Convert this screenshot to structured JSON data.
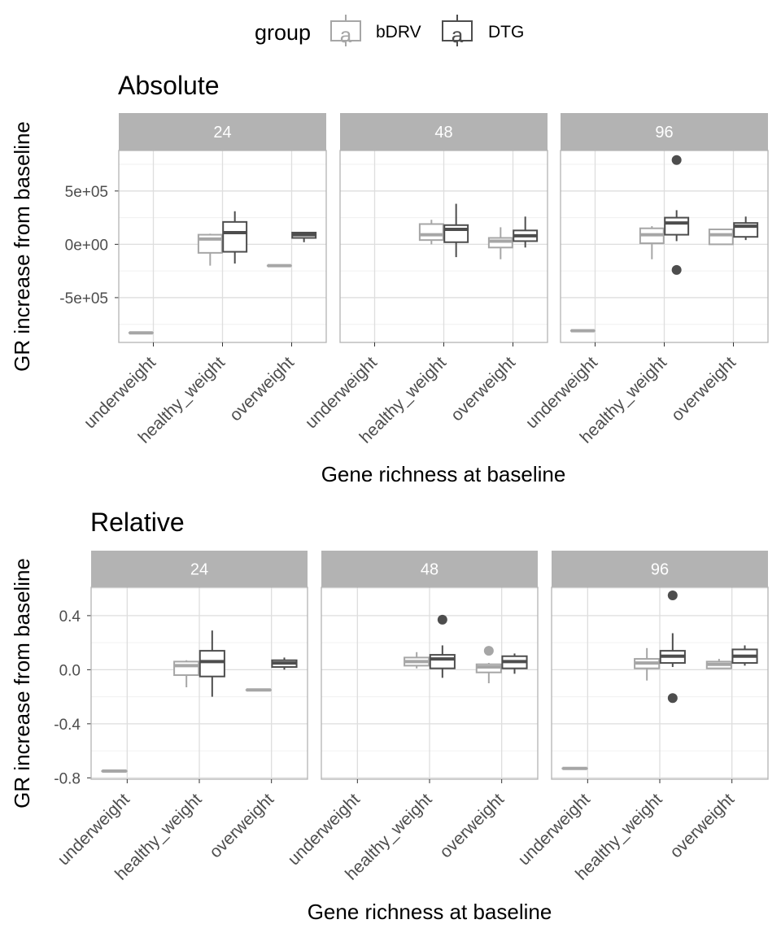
{
  "legend": {
    "title": "group",
    "glyph": "a",
    "position": "top",
    "entries": [
      {
        "label": "bDRV",
        "color": "#a6a6a6"
      },
      {
        "label": "DTG",
        "color": "#4d4d4d"
      }
    ]
  },
  "chart_data": [
    {
      "type": "boxplot",
      "title": "Absolute",
      "xlabel": "Gene richness at baseline",
      "ylabel": "GR increase from baseline",
      "categories": [
        "underweight",
        "healthy_weight",
        "overweight"
      ],
      "y_ticks": [
        -500000,
        0,
        500000
      ],
      "y_tick_labels": [
        "-5e+05",
        "0e+00",
        "5e+05"
      ],
      "ylim": [
        -920000,
        880000
      ],
      "grid": true,
      "facets": [
        {
          "label": "24",
          "boxes": [
            {
              "category": "underweight",
              "group": "bDRV",
              "min": -830000,
              "q1": -830000,
              "median": -830000,
              "q3": -830000,
              "max": -830000,
              "outliers": []
            },
            {
              "category": "healthy_weight",
              "group": "bDRV",
              "min": -200000,
              "q1": -80000,
              "median": 50000,
              "q3": 90000,
              "max": 100000,
              "outliers": []
            },
            {
              "category": "healthy_weight",
              "group": "DTG",
              "min": -180000,
              "q1": -70000,
              "median": 110000,
              "q3": 210000,
              "max": 310000,
              "outliers": []
            },
            {
              "category": "overweight",
              "group": "bDRV",
              "min": -200000,
              "q1": -200000,
              "median": -200000,
              "q3": -200000,
              "max": -200000,
              "outliers": []
            },
            {
              "category": "overweight",
              "group": "DTG",
              "min": 20000,
              "q1": 60000,
              "median": 90000,
              "q3": 110000,
              "max": 110000,
              "outliers": []
            }
          ]
        },
        {
          "label": "48",
          "boxes": [
            {
              "category": "healthy_weight",
              "group": "bDRV",
              "min": 0,
              "q1": 40000,
              "median": 90000,
              "q3": 190000,
              "max": 230000,
              "outliers": []
            },
            {
              "category": "healthy_weight",
              "group": "DTG",
              "min": -120000,
              "q1": 20000,
              "median": 140000,
              "q3": 180000,
              "max": 380000,
              "outliers": []
            },
            {
              "category": "overweight",
              "group": "bDRV",
              "min": -140000,
              "q1": -30000,
              "median": 30000,
              "q3": 60000,
              "max": 160000,
              "outliers": []
            },
            {
              "category": "overweight",
              "group": "DTG",
              "min": -30000,
              "q1": 30000,
              "median": 80000,
              "q3": 130000,
              "max": 260000,
              "outliers": []
            }
          ]
        },
        {
          "label": "96",
          "boxes": [
            {
              "category": "underweight",
              "group": "bDRV",
              "min": -810000,
              "q1": -810000,
              "median": -810000,
              "q3": -810000,
              "max": -810000,
              "outliers": []
            },
            {
              "category": "healthy_weight",
              "group": "bDRV",
              "min": -140000,
              "q1": 10000,
              "median": 90000,
              "q3": 150000,
              "max": 170000,
              "outliers": []
            },
            {
              "category": "healthy_weight",
              "group": "DTG",
              "min": 30000,
              "q1": 90000,
              "median": 200000,
              "q3": 250000,
              "max": 320000,
              "outliers": [
                790000,
                -240000
              ]
            },
            {
              "category": "overweight",
              "group": "bDRV",
              "min": 0,
              "q1": 0,
              "median": 90000,
              "q3": 140000,
              "max": 140000,
              "outliers": []
            },
            {
              "category": "overweight",
              "group": "DTG",
              "min": 40000,
              "q1": 70000,
              "median": 170000,
              "q3": 200000,
              "max": 260000,
              "outliers": []
            }
          ]
        }
      ]
    },
    {
      "type": "boxplot",
      "title": "Relative",
      "xlabel": "Gene richness at baseline",
      "ylabel": "GR increase from baseline",
      "categories": [
        "underweight",
        "healthy_weight",
        "overweight"
      ],
      "y_ticks": [
        -0.8,
        -0.4,
        0.0,
        0.4
      ],
      "y_tick_labels": [
        "-0.8",
        "-0.4",
        "0.0",
        "0.4"
      ],
      "ylim": [
        -0.81,
        0.61
      ],
      "grid": true,
      "facets": [
        {
          "label": "24",
          "boxes": [
            {
              "category": "underweight",
              "group": "bDRV",
              "min": -0.75,
              "q1": -0.75,
              "median": -0.75,
              "q3": -0.75,
              "max": -0.75,
              "outliers": []
            },
            {
              "category": "healthy_weight",
              "group": "bDRV",
              "min": -0.13,
              "q1": -0.04,
              "median": 0.03,
              "q3": 0.06,
              "max": 0.07,
              "outliers": []
            },
            {
              "category": "healthy_weight",
              "group": "DTG",
              "min": -0.2,
              "q1": -0.05,
              "median": 0.06,
              "q3": 0.14,
              "max": 0.29,
              "outliers": []
            },
            {
              "category": "overweight",
              "group": "bDRV",
              "min": -0.15,
              "q1": -0.15,
              "median": -0.15,
              "q3": -0.15,
              "max": -0.15,
              "outliers": []
            },
            {
              "category": "overweight",
              "group": "DTG",
              "min": 0.0,
              "q1": 0.02,
              "median": 0.05,
              "q3": 0.07,
              "max": 0.09,
              "outliers": []
            }
          ]
        },
        {
          "label": "48",
          "boxes": [
            {
              "category": "healthy_weight",
              "group": "bDRV",
              "min": 0.01,
              "q1": 0.03,
              "median": 0.06,
              "q3": 0.09,
              "max": 0.13,
              "outliers": []
            },
            {
              "category": "healthy_weight",
              "group": "DTG",
              "min": -0.06,
              "q1": 0.01,
              "median": 0.08,
              "q3": 0.11,
              "max": 0.18,
              "outliers": [
                0.37
              ]
            },
            {
              "category": "overweight",
              "group": "bDRV",
              "min": -0.1,
              "q1": -0.02,
              "median": 0.02,
              "q3": 0.04,
              "max": 0.05,
              "outliers": [
                0.14
              ]
            },
            {
              "category": "overweight",
              "group": "DTG",
              "min": -0.03,
              "q1": 0.01,
              "median": 0.06,
              "q3": 0.1,
              "max": 0.12,
              "outliers": []
            }
          ]
        },
        {
          "label": "96",
          "boxes": [
            {
              "category": "underweight",
              "group": "bDRV",
              "min": -0.73,
              "q1": -0.73,
              "median": -0.73,
              "q3": -0.73,
              "max": -0.73,
              "outliers": []
            },
            {
              "category": "healthy_weight",
              "group": "bDRV",
              "min": -0.08,
              "q1": 0.01,
              "median": 0.05,
              "q3": 0.08,
              "max": 0.16,
              "outliers": []
            },
            {
              "category": "healthy_weight",
              "group": "DTG",
              "min": 0.02,
              "q1": 0.05,
              "median": 0.1,
              "q3": 0.14,
              "max": 0.27,
              "outliers": [
                0.55,
                -0.21
              ]
            },
            {
              "category": "overweight",
              "group": "bDRV",
              "min": 0.01,
              "q1": 0.01,
              "median": 0.04,
              "q3": 0.06,
              "max": 0.08,
              "outliers": []
            },
            {
              "category": "overweight",
              "group": "DTG",
              "min": 0.03,
              "q1": 0.05,
              "median": 0.1,
              "q3": 0.15,
              "max": 0.18,
              "outliers": []
            }
          ]
        }
      ]
    }
  ]
}
